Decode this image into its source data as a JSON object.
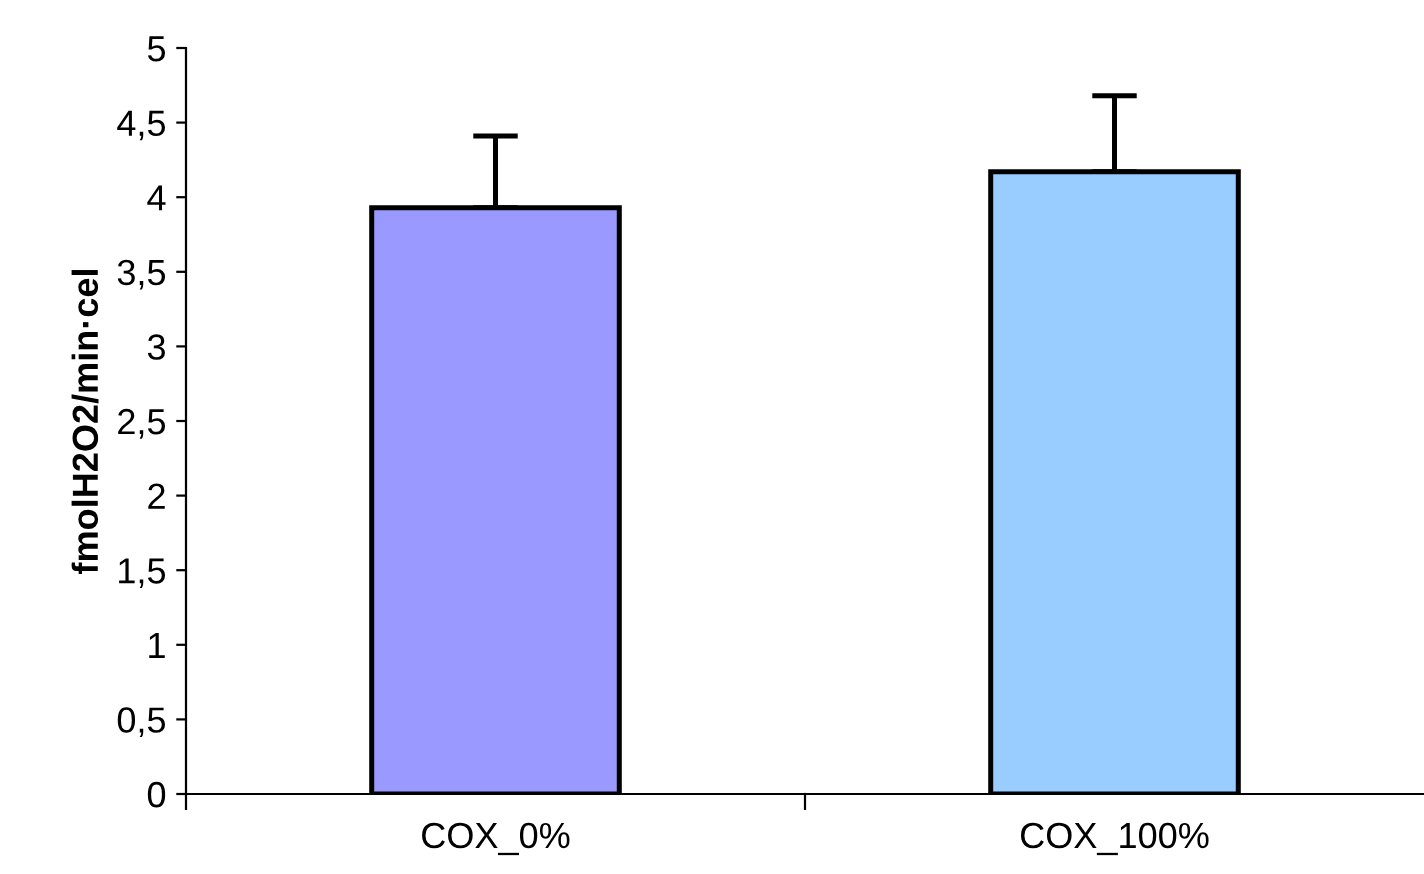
{
  "chart_data": {
    "type": "bar",
    "ylabel": "fmolH2O2/min·cel",
    "categories": [
      "COX_0%",
      "COX_100%"
    ],
    "values": [
      3.93,
      4.17
    ],
    "colors": [
      "#9999ff",
      "#99ccff"
    ],
    "errors": [
      [
        3.93,
        4.41
      ],
      [
        4.17,
        4.68
      ]
    ],
    "ylim": [
      0,
      5
    ],
    "yticks": [
      0,
      {
        "value": 0.5,
        "label": "0,5"
      },
      1,
      {
        "value": 1.5,
        "label": "1,5"
      },
      2,
      {
        "value": 2.5,
        "label": "2,5"
      },
      3,
      {
        "value": 3.5,
        "label": "3,5"
      },
      4,
      {
        "value": 4.5,
        "label": "4,5"
      },
      5
    ],
    "grid": false,
    "legend": false
  }
}
